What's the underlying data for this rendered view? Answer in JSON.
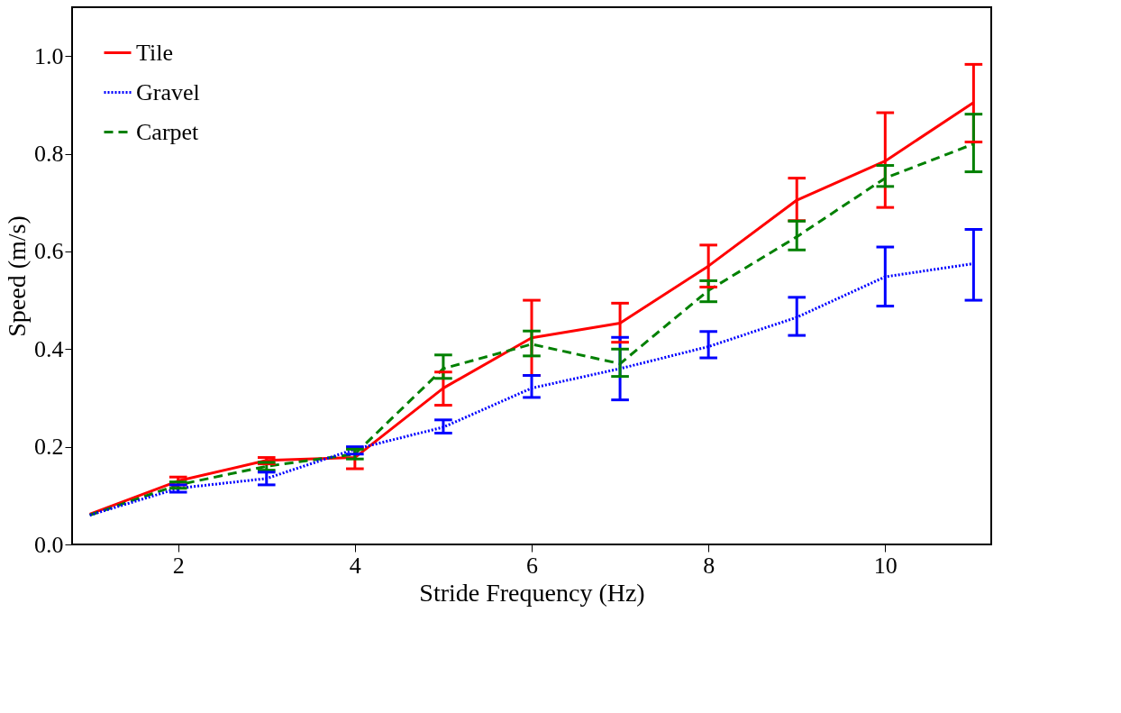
{
  "chart_data": {
    "type": "line",
    "xlabel": "Stride Frequency (Hz)",
    "ylabel": "Speed (m/s)",
    "x": [
      1,
      2,
      3,
      4,
      5,
      6,
      7,
      8,
      9,
      10,
      11
    ],
    "xlim": [
      0.8,
      11.2
    ],
    "xticks": [
      2,
      4,
      6,
      8,
      10
    ],
    "ylim": [
      0,
      1.1
    ],
    "yticks": [
      {
        "value": 0,
        "label": "0.0"
      },
      0.2,
      0.4,
      0.6,
      0.8,
      {
        "value": 1,
        "label": "1.0"
      }
    ],
    "grid": false,
    "legend": "top left",
    "marker": "none",
    "series": [
      {
        "name": "Tile",
        "color": "#ff0000",
        "line_style": "solid",
        "values": [
          0.062,
          0.13,
          0.172,
          0.178,
          0.32,
          0.423,
          0.453,
          0.57,
          0.705,
          0.785,
          0.905
        ],
        "errors": [
          null,
          [
            0.122,
            0.138
          ],
          [
            0.165,
            0.178
          ],
          [
            0.155,
            0.198
          ],
          [
            0.285,
            0.353
          ],
          [
            0.346,
            0.5
          ],
          [
            0.414,
            0.494
          ],
          [
            0.527,
            0.613
          ],
          [
            0.663,
            0.75
          ],
          [
            0.69,
            0.884
          ],
          [
            0.824,
            0.983
          ]
        ]
      },
      {
        "name": "Gravel",
        "color": "#0000ff",
        "line_style": "dotted",
        "values": [
          0.06,
          0.115,
          0.135,
          0.195,
          0.24,
          0.32,
          0.36,
          0.405,
          0.465,
          0.548,
          0.575
        ],
        "errors": [
          null,
          [
            0.107,
            0.122
          ],
          [
            0.122,
            0.148
          ],
          [
            0.185,
            0.2
          ],
          [
            0.228,
            0.255
          ],
          [
            0.301,
            0.346
          ],
          [
            0.296,
            0.424
          ],
          [
            0.382,
            0.436
          ],
          [
            0.428,
            0.506
          ],
          [
            0.488,
            0.609
          ],
          [
            0.5,
            0.645
          ]
        ]
      },
      {
        "name": "Carpet",
        "color": "#008000",
        "line_style": "dashed",
        "values": [
          0.06,
          0.122,
          0.16,
          0.185,
          0.36,
          0.41,
          0.37,
          0.52,
          0.63,
          0.75,
          0.82
        ],
        "errors": [
          null,
          [
            0.115,
            0.128
          ],
          [
            0.152,
            0.168
          ],
          [
            0.175,
            0.195
          ],
          [
            0.34,
            0.388
          ],
          [
            0.386,
            0.437
          ],
          [
            0.344,
            0.4
          ],
          [
            0.497,
            0.54
          ],
          [
            0.603,
            0.662
          ],
          [
            0.733,
            0.776
          ],
          [
            0.763,
            0.881
          ]
        ]
      }
    ]
  }
}
